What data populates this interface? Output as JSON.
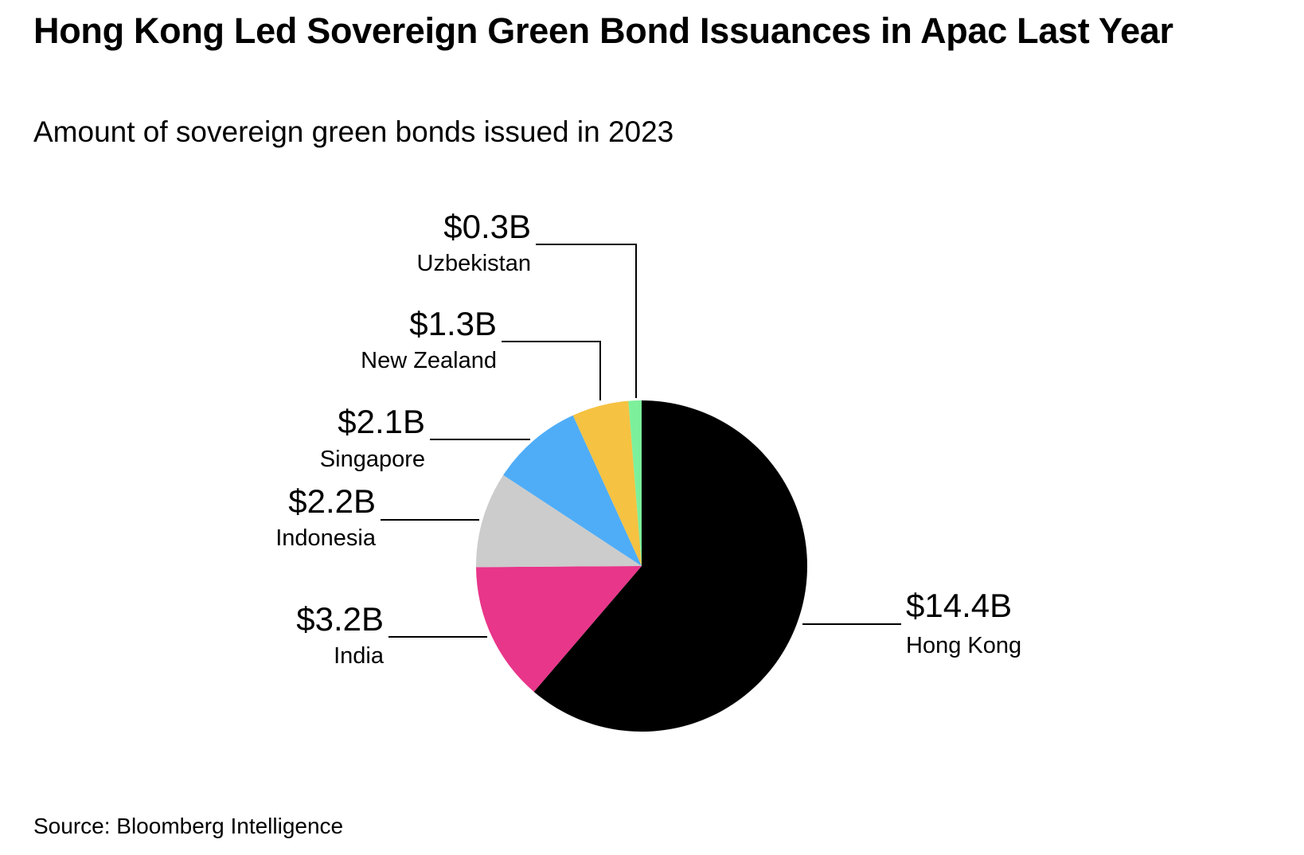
{
  "title": "Hong Kong Led Sovereign Green Bond Issuances in Apac Last Year",
  "subtitle": "Amount of sovereign green bonds issued in 2023",
  "source": "Source: Bloomberg Intelligence",
  "chart_data": {
    "type": "pie",
    "categories": [
      "Hong Kong",
      "India",
      "Indonesia",
      "Singapore",
      "New Zealand",
      "Uzbekistan"
    ],
    "values": [
      14.4,
      3.2,
      2.2,
      2.1,
      1.3,
      0.3
    ],
    "labels": [
      "$14.4B",
      "$3.2B",
      "$2.2B",
      "$2.1B",
      "$1.3B",
      "$0.3B"
    ],
    "colors": [
      "#000000",
      "#e8368a",
      "#cccccc",
      "#4fadf7",
      "#f5c242",
      "#7df09b"
    ],
    "start": "12 o'clock",
    "direction": "clockwise"
  }
}
